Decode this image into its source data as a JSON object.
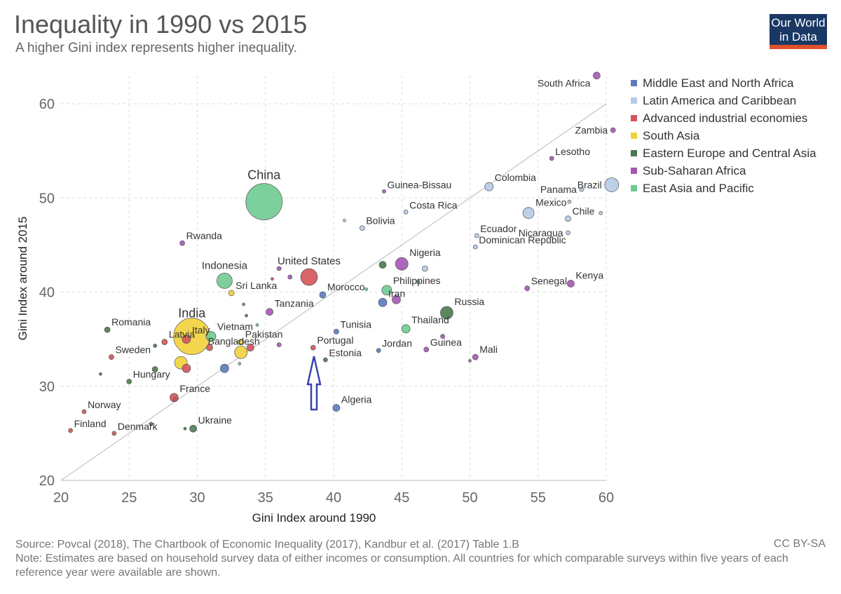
{
  "header": {
    "title": "Inequality in 1990 vs 2015",
    "subtitle": "A higher Gini index represents higher inequality.",
    "logo_line1": "Our World",
    "logo_line2": "in Data"
  },
  "footer": {
    "source": "Source: Povcal (2018), The Chartbook of Economic Inequality (2017), Kandbur et al. (2017) Table 1.B",
    "note": "Note: Estimates are based on household survey data of either incomes or consumption. All countries for which comparable surveys within five years of each reference year were available are shown.",
    "license": "CC BY-SA"
  },
  "colors": {
    "mena": "#5a7bbf",
    "latam": "#b5cbe5",
    "advanced": "#d4535a",
    "south_asia": "#f2d23a",
    "eeca": "#4a7a4f",
    "ssa": "#a458b5",
    "eap": "#6fcb90"
  },
  "annotation": {
    "icon": "up-arrow-icon",
    "color": "#3a44b0"
  },
  "chart_data": {
    "type": "scatter",
    "title": "Inequality in 1990 vs 2015",
    "subtitle": "A higher Gini index represents higher inequality.",
    "xlabel": "Gini Index around 1990",
    "ylabel": "Gini Index around 2015",
    "xlim": [
      20,
      60
    ],
    "ylim": [
      20,
      63
    ],
    "xticks": [
      20,
      25,
      30,
      35,
      40,
      45,
      50,
      55,
      60
    ],
    "yticks": [
      20,
      30,
      40,
      50,
      60
    ],
    "grid": true,
    "diagonal_line": [
      [
        20,
        20
      ],
      [
        60,
        60
      ]
    ],
    "legend_position": "right",
    "series": [
      {
        "name": "Middle East and North Africa",
        "key": "mena"
      },
      {
        "name": "Latin America and Caribbean",
        "key": "latam"
      },
      {
        "name": "Advanced industrial economies",
        "key": "advanced"
      },
      {
        "name": "South Asia",
        "key": "south_asia"
      },
      {
        "name": "Eastern Europe and Central Asia",
        "key": "eeca"
      },
      {
        "name": "Sub-Saharan Africa",
        "key": "ssa"
      },
      {
        "name": "East Asia and Pacific",
        "key": "eap"
      }
    ],
    "points": [
      {
        "label": "South Africa",
        "x": 59.3,
        "y": 63.0,
        "r": 5,
        "g": "ssa",
        "la": "l"
      },
      {
        "label": "Zambia",
        "x": 60.5,
        "y": 57.2,
        "r": 3.5,
        "g": "ssa",
        "la": "l"
      },
      {
        "label": "Lesotho",
        "x": 56.0,
        "y": 54.2,
        "r": 3,
        "g": "ssa",
        "la": "r"
      },
      {
        "label": "Brazil",
        "x": 60.4,
        "y": 51.4,
        "r": 10,
        "g": "latam",
        "la": "l"
      },
      {
        "label": "Panama",
        "x": 58.2,
        "y": 50.9,
        "r": 3,
        "g": "latam",
        "la": "l"
      },
      {
        "label": "Colombia",
        "x": 51.4,
        "y": 51.2,
        "r": 6,
        "g": "latam",
        "la": "r"
      },
      {
        "label": "Mexico",
        "x": 54.3,
        "y": 48.4,
        "r": 8,
        "g": "latam",
        "la": "r"
      },
      {
        "label": "Chile",
        "x": 57.2,
        "y": 47.8,
        "r": 4,
        "g": "latam",
        "la": "r"
      },
      {
        "label": "",
        "x": 57.3,
        "y": 49.6,
        "r": 2.5,
        "g": "latam"
      },
      {
        "label": "",
        "x": 59.6,
        "y": 48.4,
        "r": 2.5,
        "g": "latam"
      },
      {
        "label": "Nicaragua",
        "x": 57.2,
        "y": 46.3,
        "r": 3,
        "g": "latam",
        "la": "l"
      },
      {
        "label": "Ecuador",
        "x": 50.5,
        "y": 46.0,
        "r": 3,
        "g": "latam",
        "la": "r"
      },
      {
        "label": "Dominican Republic",
        "x": 50.4,
        "y": 44.8,
        "r": 3,
        "g": "latam",
        "la": "r"
      },
      {
        "label": "Guinea-Bissau",
        "x": 43.7,
        "y": 50.7,
        "r": 2.5,
        "g": "ssa",
        "la": "r"
      },
      {
        "label": "Costa Rica",
        "x": 45.3,
        "y": 48.5,
        "r": 3,
        "g": "latam",
        "la": "r"
      },
      {
        "label": "Bolivia",
        "x": 42.1,
        "y": 46.8,
        "r": 3.5,
        "g": "latam",
        "la": "r"
      },
      {
        "label": "",
        "x": 40.8,
        "y": 47.6,
        "r": 2,
        "g": "latam"
      },
      {
        "label": "China",
        "x": 34.9,
        "y": 49.6,
        "r": 26,
        "g": "eap",
        "la": "t"
      },
      {
        "label": "Rwanda",
        "x": 28.9,
        "y": 45.2,
        "r": 3.5,
        "g": "ssa",
        "la": "r"
      },
      {
        "label": "Nigeria",
        "x": 45.0,
        "y": 43.0,
        "r": 9,
        "g": "ssa",
        "la": "r"
      },
      {
        "label": "",
        "x": 46.7,
        "y": 42.5,
        "r": 4,
        "g": "latam"
      },
      {
        "label": "",
        "x": 43.6,
        "y": 42.9,
        "r": 5,
        "g": "eeca"
      },
      {
        "label": "United States",
        "x": 38.2,
        "y": 41.6,
        "r": 12,
        "g": "advanced",
        "la": "t"
      },
      {
        "label": "Indonesia",
        "x": 32.0,
        "y": 41.2,
        "r": 11,
        "g": "eap",
        "la": "t"
      },
      {
        "label": "",
        "x": 36.0,
        "y": 42.5,
        "r": 3,
        "g": "ssa"
      },
      {
        "label": "",
        "x": 36.8,
        "y": 41.6,
        "r": 3,
        "g": "ssa"
      },
      {
        "label": "",
        "x": 35.5,
        "y": 41.4,
        "r": 2,
        "g": "advanced"
      },
      {
        "label": "Sri Lanka",
        "x": 32.5,
        "y": 39.9,
        "r": 4,
        "g": "south_asia",
        "la": "r"
      },
      {
        "label": "Morocco",
        "x": 39.2,
        "y": 39.7,
        "r": 4.5,
        "g": "mena",
        "la": "r"
      },
      {
        "label": "Philippines",
        "x": 43.9,
        "y": 40.2,
        "r": 7,
        "g": "eap",
        "la": "r"
      },
      {
        "label": "",
        "x": 46.2,
        "y": 41.1,
        "r": 2.5,
        "g": "eap"
      },
      {
        "label": "",
        "x": 42.4,
        "y": 40.3,
        "r": 2,
        "g": "eap"
      },
      {
        "label": "Iran",
        "x": 43.6,
        "y": 38.9,
        "r": 6,
        "g": "mena",
        "la": "r"
      },
      {
        "label": "",
        "x": 44.6,
        "y": 39.2,
        "r": 6,
        "g": "ssa"
      },
      {
        "label": "Russia",
        "x": 48.3,
        "y": 37.8,
        "r": 9,
        "g": "eeca",
        "la": "r"
      },
      {
        "label": "Tanzania",
        "x": 35.3,
        "y": 37.9,
        "r": 5,
        "g": "ssa",
        "la": "r"
      },
      {
        "label": "",
        "x": 33.4,
        "y": 38.7,
        "r": 2,
        "g": "ssa"
      },
      {
        "label": "",
        "x": 33.6,
        "y": 37.5,
        "r": 2,
        "g": "eeca"
      },
      {
        "label": "",
        "x": 34.4,
        "y": 36.5,
        "r": 2,
        "g": "eap"
      },
      {
        "label": "Thailand",
        "x": 45.3,
        "y": 36.1,
        "r": 6,
        "g": "eap",
        "la": "r"
      },
      {
        "label": "Senegal",
        "x": 54.2,
        "y": 40.4,
        "r": 3.5,
        "g": "ssa",
        "la": "r"
      },
      {
        "label": "Kenya",
        "x": 57.4,
        "y": 40.9,
        "r": 5,
        "g": "ssa",
        "la": "r"
      },
      {
        "label": "India",
        "x": 29.6,
        "y": 35.3,
        "r": 26,
        "g": "south_asia",
        "la": "tr"
      },
      {
        "label": "Romania",
        "x": 23.4,
        "y": 36.0,
        "r": 4,
        "g": "eeca",
        "la": "r"
      },
      {
        "label": "Italy",
        "x": 29.2,
        "y": 35.0,
        "r": 6,
        "g": "advanced",
        "la": "r"
      },
      {
        "label": "Latvia",
        "x": 27.6,
        "y": 34.7,
        "r": 4,
        "g": "advanced",
        "la": "r"
      },
      {
        "label": "",
        "x": 26.9,
        "y": 34.3,
        "r": 2.5,
        "g": "eeca"
      },
      {
        "label": "Vietnam",
        "x": 31.0,
        "y": 35.3,
        "r": 7,
        "g": "eap",
        "la": "r"
      },
      {
        "label": "Tunisia",
        "x": 40.2,
        "y": 35.8,
        "r": 3.5,
        "g": "mena",
        "la": "r"
      },
      {
        "label": "Pakistan",
        "x": 33.2,
        "y": 34.7,
        "r": 4,
        "g": "south_asia",
        "la": "r"
      },
      {
        "label": "",
        "x": 33.9,
        "y": 34.1,
        "r": 5,
        "g": "advanced"
      },
      {
        "label": "",
        "x": 36.0,
        "y": 34.4,
        "r": 3,
        "g": "ssa"
      },
      {
        "label": "Bangladesh",
        "x": 33.2,
        "y": 33.6,
        "r": 9,
        "g": "south_asia",
        "la": "tl"
      },
      {
        "label": "",
        "x": 30.9,
        "y": 34.1,
        "r": 4.5,
        "g": "advanced"
      },
      {
        "label": "",
        "x": 33.1,
        "y": 32.4,
        "r": 2,
        "g": "eap"
      },
      {
        "label": "Sweden",
        "x": 23.7,
        "y": 33.1,
        "r": 3.5,
        "g": "advanced",
        "la": "r"
      },
      {
        "label": "Portugal",
        "x": 38.5,
        "y": 34.1,
        "r": 3.5,
        "g": "advanced",
        "la": "r"
      },
      {
        "label": "Estonia",
        "x": 39.4,
        "y": 32.8,
        "r": 3,
        "g": "eeca",
        "la": "r"
      },
      {
        "label": "Jordan",
        "x": 43.3,
        "y": 33.8,
        "r": 3,
        "g": "mena",
        "la": "r"
      },
      {
        "label": "Guinea",
        "x": 46.8,
        "y": 33.9,
        "r": 3.5,
        "g": "ssa",
        "la": "r"
      },
      {
        "label": "",
        "x": 48.0,
        "y": 35.3,
        "r": 3,
        "g": "ssa"
      },
      {
        "label": "Mali",
        "x": 50.4,
        "y": 33.1,
        "r": 4,
        "g": "ssa",
        "la": "r"
      },
      {
        "label": "",
        "x": 50.0,
        "y": 32.7,
        "r": 2,
        "g": "ssa"
      },
      {
        "label": "",
        "x": 28.8,
        "y": 32.5,
        "r": 9,
        "g": "south_asia"
      },
      {
        "label": "",
        "x": 29.2,
        "y": 31.9,
        "r": 6,
        "g": "advanced"
      },
      {
        "label": "",
        "x": 32.0,
        "y": 31.9,
        "r": 6,
        "g": "mena"
      },
      {
        "label": "",
        "x": 26.9,
        "y": 31.8,
        "r": 4,
        "g": "eeca"
      },
      {
        "label": "Hungary",
        "x": 25.0,
        "y": 30.5,
        "r": 3.5,
        "g": "eeca",
        "la": "r"
      },
      {
        "label": "",
        "x": 22.9,
        "y": 31.3,
        "r": 2,
        "g": "eeca"
      },
      {
        "label": "France",
        "x": 28.3,
        "y": 28.8,
        "r": 6,
        "g": "advanced",
        "la": "r"
      },
      {
        "label": "",
        "x": 28.4,
        "y": 28.6,
        "r": 3,
        "g": "advanced"
      },
      {
        "label": "Algeria",
        "x": 40.2,
        "y": 27.7,
        "r": 5,
        "g": "mena",
        "la": "r"
      },
      {
        "label": "Norway",
        "x": 21.7,
        "y": 27.3,
        "r": 3,
        "g": "advanced",
        "la": "r"
      },
      {
        "label": "Finland",
        "x": 20.7,
        "y": 25.3,
        "r": 3,
        "g": "advanced",
        "la": "r"
      },
      {
        "label": "Denmark",
        "x": 23.9,
        "y": 25.0,
        "r": 3,
        "g": "advanced",
        "la": "r"
      },
      {
        "label": "",
        "x": 26.6,
        "y": 26.0,
        "r": 2.5,
        "g": "eeca"
      },
      {
        "label": "Ukraine",
        "x": 29.7,
        "y": 25.5,
        "r": 5,
        "g": "eeca",
        "la": "r"
      },
      {
        "label": "",
        "x": 29.1,
        "y": 25.5,
        "r": 2,
        "g": "eeca"
      }
    ]
  }
}
